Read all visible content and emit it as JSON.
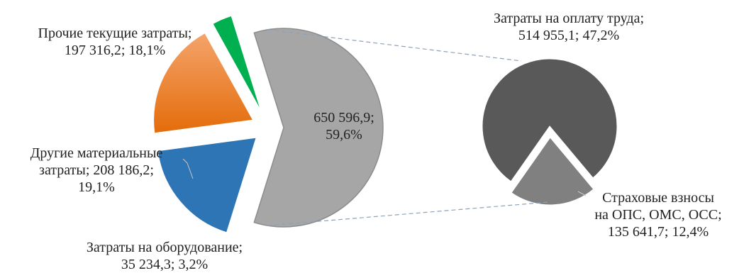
{
  "chart_data": {
    "type": "bar-of-pie",
    "main_pie": {
      "slices": [
        {
          "name": "Прочие текущие затраты",
          "value": 197316.2,
          "percent": 18.1,
          "label_lines": [
            "Прочие текущие затраты;",
            "197 316,2; 18,1%"
          ],
          "color": "#2e75b6"
        },
        {
          "name": "Другие материальные затраты",
          "value": 208186.2,
          "percent": 19.1,
          "label_lines": [
            "Другие материальные",
            "затраты; 208 186,2;",
            "19,1%"
          ],
          "color": "#ed7d31"
        },
        {
          "name": "Затраты на оборудование",
          "value": 35234.3,
          "percent": 3.2,
          "label_lines": [
            "Затраты на оборудование;",
            "35 234,3; 3,2%"
          ],
          "color": "#00b050"
        },
        {
          "name": "",
          "value": 650596.9,
          "percent": 59.6,
          "label_lines": [
            "650 596,9;",
            "59,6%"
          ],
          "color": "#a6a6a6"
        }
      ]
    },
    "secondary_pie": {
      "slices": [
        {
          "name": "Затраты на оплату труда",
          "value": 514955.1,
          "percent": 47.2,
          "label_lines": [
            "Затраты на оплату труда;",
            "514 955,1; 47,2%"
          ],
          "color": "#595959"
        },
        {
          "name": "Страховые взносы на ОПС, ОМС, ОСС",
          "value": 135641.7,
          "percent": 12.4,
          "label_lines": [
            "Страховые взносы",
            "на ОПС, ОМС, ОСС;",
            "135 641,7; 12,4%"
          ],
          "color": "#808080"
        }
      ]
    }
  }
}
